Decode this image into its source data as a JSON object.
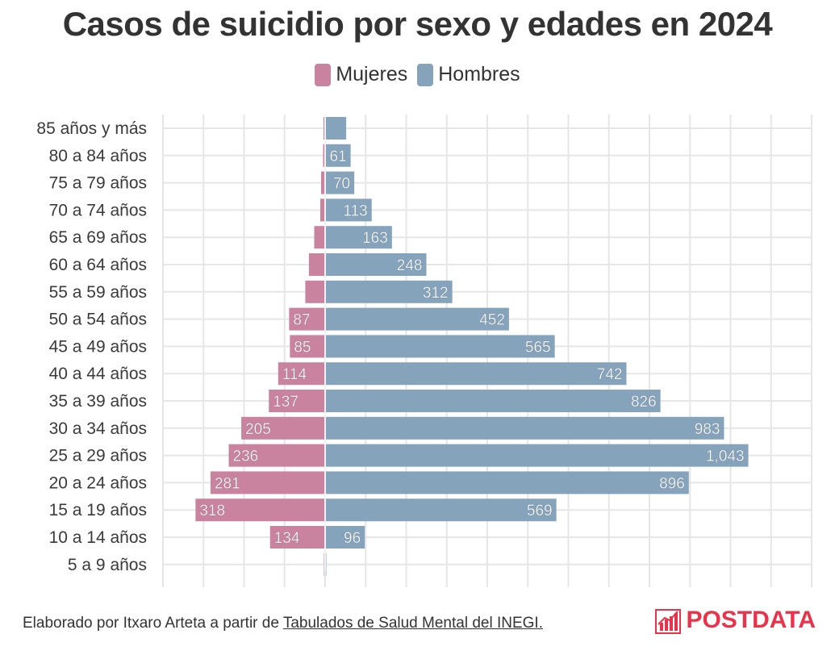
{
  "title": "Casos de suicidio por sexo y edades en 2024",
  "legend": {
    "women_label": "Mujeres",
    "men_label": "Hombres",
    "women_color": "#c9839f",
    "men_color": "#86a3bc"
  },
  "footer": {
    "credit_prefix": "Elaborado por Itxaro Arteta a partir de ",
    "source_link": "Tabulados de Salud Mental del INEGI."
  },
  "brand": {
    "name": "POSTDATA",
    "color": "#e8334a",
    "icon": "bar-chart-logo-icon"
  },
  "chart_data": {
    "type": "bar",
    "orientation": "horizontal-diverging",
    "title": "Casos de suicidio por sexo y edades en 2024",
    "categories": [
      "85 años y más",
      "80 a 84 años",
      "75 a 79 años",
      "70 a 74 años",
      "65 a 69 años",
      "60 a 64 años",
      "55 a 59 años",
      "50 a 54 años",
      "45 a 49 años",
      "40 a 44 años",
      "35 a 39 años",
      "30 a 34 años",
      "25 a 29 años",
      "20 a 24 años",
      "15 a 19 años",
      "10 a 14 años",
      "5 a 9 años"
    ],
    "series": [
      {
        "name": "Mujeres",
        "direction": "left",
        "values": [
          2,
          3,
          8,
          10,
          25,
          38,
          47,
          87,
          85,
          114,
          137,
          205,
          236,
          281,
          318,
          134,
          1
        ],
        "labels": [
          "",
          "",
          "",
          "",
          "",
          "",
          "",
          "87",
          "85",
          "114",
          "137",
          "205",
          "236",
          "281",
          "318",
          "134",
          ""
        ]
      },
      {
        "name": "Hombres",
        "direction": "right",
        "values": [
          50,
          61,
          70,
          113,
          163,
          248,
          312,
          452,
          565,
          742,
          826,
          983,
          1043,
          896,
          569,
          96,
          1
        ],
        "labels": [
          "",
          "61",
          "70",
          "113",
          "163",
          "248",
          "312",
          "452",
          "565",
          "742",
          "826",
          "983",
          "1,043",
          "896",
          "569",
          "96",
          ""
        ]
      }
    ],
    "xlim": [
      -400,
      1200
    ],
    "grid": true,
    "legend_position": "top-center"
  }
}
